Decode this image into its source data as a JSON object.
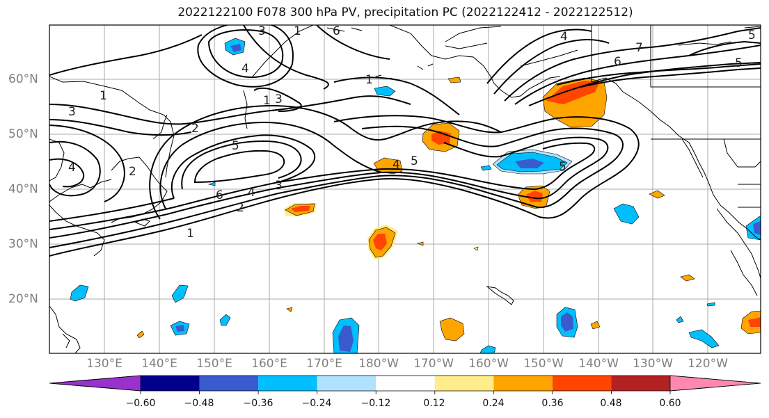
{
  "title": "2022122100 F078 300 hPa PV, precipitation PC (2022122412 - 2022122512)",
  "lat_labels": [
    "60°N",
    "50°N",
    "40°N",
    "30°N",
    "20°N"
  ],
  "lon_labels": [
    "130°E",
    "140°E",
    "150°E",
    "160°E",
    "170°E",
    "180°W",
    "170°W",
    "160°W",
    "150°W",
    "140°W",
    "130°W",
    "120°W"
  ],
  "colorbar": {
    "colors": [
      "#9932cc",
      "#00008b",
      "#3a5bcd",
      "#00bfff",
      "#b0e2ff",
      "#ffffff",
      "#ffec8b",
      "#ffa500",
      "#ff4500",
      "#b22222",
      "#ff88b0"
    ],
    "tick_labels": [
      "−0.60",
      "−0.48",
      "−0.36",
      "−0.24",
      "−0.12",
      "0.12",
      "0.24",
      "0.36",
      "0.48",
      "0.60"
    ]
  },
  "contour_labels": [
    "1",
    "2",
    "3",
    "4",
    "5",
    "6",
    "1",
    "2",
    "3",
    "4",
    "5",
    "6",
    "1",
    "3",
    "4",
    "1",
    "2",
    "4",
    "5",
    "4",
    "5",
    "6",
    "7",
    "5",
    "1",
    "3"
  ]
}
